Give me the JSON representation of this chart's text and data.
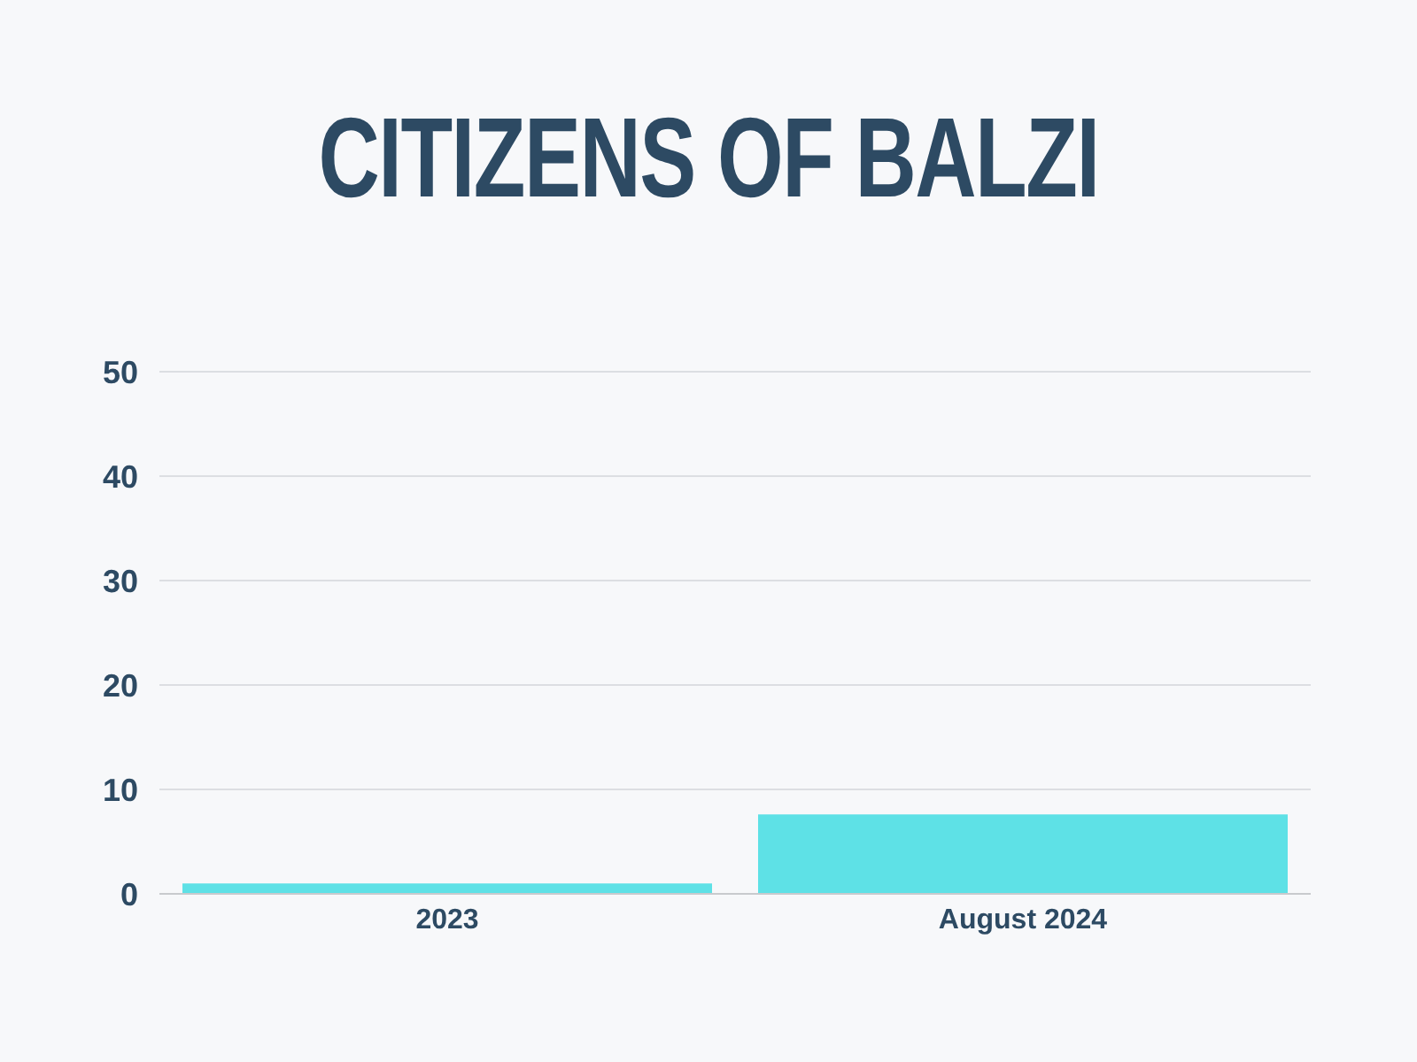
{
  "chart_data": {
    "type": "bar",
    "title": "CITIZENS OF BALZI",
    "categories": [
      "2023",
      "August 2024"
    ],
    "values": [
      1,
      7.6
    ],
    "color": "#5ee1e6",
    "ylim": [
      0,
      50
    ],
    "yticks": [
      0,
      10,
      20,
      30,
      40,
      50
    ],
    "grid": "y"
  }
}
